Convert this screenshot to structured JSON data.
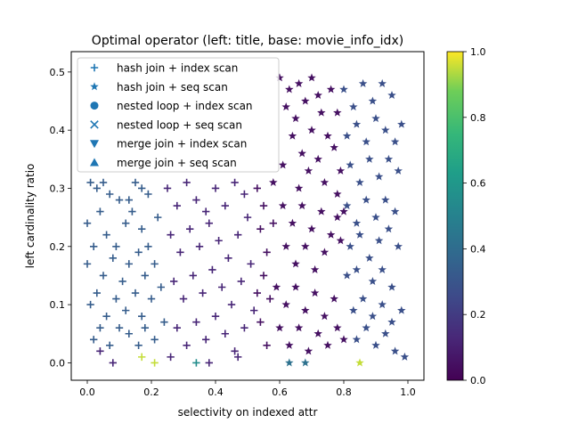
{
  "chart_data": {
    "type": "scatter",
    "title": "Optimal operator (left: title, base: movie_info_idx)",
    "xlabel": "selectivity on indexed attr",
    "ylabel": "left cardinality ratio",
    "xlim": [
      -0.05,
      1.05
    ],
    "ylim": [
      -0.03,
      0.535
    ],
    "xticks": [
      0.0,
      0.2,
      0.4,
      0.6,
      0.8,
      1.0
    ],
    "xtick_labels": [
      "0.0",
      "0.2",
      "0.4",
      "0.6",
      "0.8",
      "1.0"
    ],
    "yticks": [
      0.0,
      0.1,
      0.2,
      0.3,
      0.4,
      0.5
    ],
    "ytick_labels": [
      "0.0",
      "0.1",
      "0.2",
      "0.3",
      "0.4",
      "0.5"
    ],
    "grid": false,
    "legend_position": "upper-left",
    "legend_color": "#1f77b4",
    "colormap": "viridis",
    "colorbar": {
      "range": [
        0.0,
        1.0
      ],
      "ticks": [
        0.0,
        0.2,
        0.4,
        0.6,
        0.8,
        1.0
      ],
      "tick_labels": [
        "0.0",
        "0.2",
        "0.4",
        "0.6",
        "0.8",
        "1.0"
      ]
    },
    "series": [
      {
        "name": "hash join + index scan",
        "marker": "plus",
        "points": [
          [
            0.01,
            0.31,
            0.33
          ],
          [
            0.03,
            0.3,
            0.33
          ],
          [
            0.05,
            0.31,
            0.33
          ],
          [
            0.07,
            0.29,
            0.33
          ],
          [
            0.1,
            0.28,
            0.33
          ],
          [
            0.13,
            0.28,
            0.33
          ],
          [
            0.15,
            0.31,
            0.33
          ],
          [
            0.17,
            0.3,
            0.33
          ],
          [
            0.19,
            0.29,
            0.33
          ],
          [
            0.0,
            0.24,
            0.33
          ],
          [
            0.04,
            0.26,
            0.33
          ],
          [
            0.06,
            0.22,
            0.33
          ],
          [
            0.09,
            0.2,
            0.33
          ],
          [
            0.12,
            0.24,
            0.33
          ],
          [
            0.14,
            0.26,
            0.33
          ],
          [
            0.17,
            0.23,
            0.33
          ],
          [
            0.19,
            0.2,
            0.33
          ],
          [
            0.22,
            0.25,
            0.33
          ],
          [
            0.0,
            0.17,
            0.33
          ],
          [
            0.02,
            0.2,
            0.33
          ],
          [
            0.05,
            0.15,
            0.33
          ],
          [
            0.08,
            0.18,
            0.33
          ],
          [
            0.11,
            0.14,
            0.33
          ],
          [
            0.13,
            0.17,
            0.33
          ],
          [
            0.16,
            0.19,
            0.33
          ],
          [
            0.18,
            0.15,
            0.33
          ],
          [
            0.21,
            0.17,
            0.33
          ],
          [
            0.01,
            0.1,
            0.33
          ],
          [
            0.03,
            0.12,
            0.33
          ],
          [
            0.06,
            0.08,
            0.33
          ],
          [
            0.09,
            0.11,
            0.33
          ],
          [
            0.12,
            0.09,
            0.33
          ],
          [
            0.15,
            0.12,
            0.33
          ],
          [
            0.17,
            0.08,
            0.33
          ],
          [
            0.2,
            0.11,
            0.33
          ],
          [
            0.23,
            0.13,
            0.33
          ],
          [
            0.02,
            0.04,
            0.33
          ],
          [
            0.04,
            0.06,
            0.33
          ],
          [
            0.07,
            0.03,
            0.33
          ],
          [
            0.1,
            0.06,
            0.33
          ],
          [
            0.13,
            0.05,
            0.33
          ],
          [
            0.16,
            0.03,
            0.33
          ],
          [
            0.18,
            0.06,
            0.33
          ],
          [
            0.21,
            0.04,
            0.33
          ],
          [
            0.24,
            0.07,
            0.33
          ],
          [
            0.25,
            0.3,
            0.12
          ],
          [
            0.28,
            0.27,
            0.12
          ],
          [
            0.31,
            0.31,
            0.12
          ],
          [
            0.34,
            0.28,
            0.12
          ],
          [
            0.37,
            0.26,
            0.12
          ],
          [
            0.4,
            0.3,
            0.12
          ],
          [
            0.43,
            0.27,
            0.12
          ],
          [
            0.46,
            0.31,
            0.12
          ],
          [
            0.49,
            0.29,
            0.12
          ],
          [
            0.26,
            0.22,
            0.12
          ],
          [
            0.29,
            0.19,
            0.12
          ],
          [
            0.32,
            0.23,
            0.12
          ],
          [
            0.35,
            0.2,
            0.12
          ],
          [
            0.38,
            0.24,
            0.12
          ],
          [
            0.41,
            0.21,
            0.12
          ],
          [
            0.44,
            0.18,
            0.12
          ],
          [
            0.47,
            0.22,
            0.12
          ],
          [
            0.5,
            0.25,
            0.12
          ],
          [
            0.27,
            0.14,
            0.12
          ],
          [
            0.3,
            0.11,
            0.12
          ],
          [
            0.33,
            0.15,
            0.12
          ],
          [
            0.36,
            0.12,
            0.12
          ],
          [
            0.39,
            0.16,
            0.12
          ],
          [
            0.42,
            0.13,
            0.12
          ],
          [
            0.45,
            0.1,
            0.12
          ],
          [
            0.48,
            0.14,
            0.12
          ],
          [
            0.51,
            0.17,
            0.12
          ],
          [
            0.28,
            0.06,
            0.12
          ],
          [
            0.31,
            0.03,
            0.12
          ],
          [
            0.34,
            0.07,
            0.12
          ],
          [
            0.37,
            0.04,
            0.12
          ],
          [
            0.4,
            0.08,
            0.12
          ],
          [
            0.43,
            0.05,
            0.12
          ],
          [
            0.46,
            0.02,
            0.12
          ],
          [
            0.49,
            0.06,
            0.12
          ],
          [
            0.52,
            0.09,
            0.12
          ],
          [
            0.04,
            0.02,
            0.12
          ],
          [
            0.08,
            0.0,
            0.12
          ],
          [
            0.26,
            0.01,
            0.12
          ],
          [
            0.38,
            0.0,
            0.12
          ],
          [
            0.47,
            0.01,
            0.12
          ],
          [
            0.17,
            0.01,
            0.95
          ],
          [
            0.21,
            0.0,
            0.95
          ],
          [
            0.34,
            0.0,
            0.55
          ],
          [
            0.53,
            0.3,
            0.05
          ],
          [
            0.55,
            0.27,
            0.05
          ],
          [
            0.54,
            0.23,
            0.05
          ],
          [
            0.56,
            0.19,
            0.05
          ],
          [
            0.55,
            0.15,
            0.05
          ],
          [
            0.57,
            0.11,
            0.05
          ],
          [
            0.54,
            0.07,
            0.05
          ],
          [
            0.56,
            0.03,
            0.05
          ],
          [
            0.58,
            0.24,
            0.05
          ],
          [
            0.53,
            0.12,
            0.05
          ]
        ]
      },
      {
        "name": "hash join + seq scan",
        "marker": "star",
        "points": [
          [
            0.6,
            0.49,
            0.05
          ],
          [
            0.63,
            0.47,
            0.05
          ],
          [
            0.66,
            0.48,
            0.05
          ],
          [
            0.62,
            0.44,
            0.05
          ],
          [
            0.65,
            0.42,
            0.05
          ],
          [
            0.68,
            0.45,
            0.05
          ],
          [
            0.7,
            0.49,
            0.05
          ],
          [
            0.72,
            0.46,
            0.05
          ],
          [
            0.64,
            0.39,
            0.05
          ],
          [
            0.67,
            0.36,
            0.05
          ],
          [
            0.7,
            0.4,
            0.05
          ],
          [
            0.73,
            0.43,
            0.05
          ],
          [
            0.75,
            0.39,
            0.05
          ],
          [
            0.69,
            0.33,
            0.05
          ],
          [
            0.72,
            0.35,
            0.05
          ],
          [
            0.74,
            0.31,
            0.05
          ],
          [
            0.61,
            0.34,
            0.05
          ],
          [
            0.66,
            0.3,
            0.05
          ],
          [
            0.58,
            0.31,
            0.05
          ],
          [
            0.61,
            0.27,
            0.05
          ],
          [
            0.64,
            0.24,
            0.05
          ],
          [
            0.67,
            0.27,
            0.05
          ],
          [
            0.7,
            0.23,
            0.05
          ],
          [
            0.73,
            0.26,
            0.05
          ],
          [
            0.76,
            0.22,
            0.05
          ],
          [
            0.78,
            0.25,
            0.05
          ],
          [
            0.62,
            0.2,
            0.05
          ],
          [
            0.65,
            0.17,
            0.05
          ],
          [
            0.68,
            0.2,
            0.05
          ],
          [
            0.71,
            0.16,
            0.05
          ],
          [
            0.74,
            0.19,
            0.05
          ],
          [
            0.59,
            0.13,
            0.05
          ],
          [
            0.62,
            0.1,
            0.05
          ],
          [
            0.65,
            0.13,
            0.05
          ],
          [
            0.68,
            0.09,
            0.05
          ],
          [
            0.71,
            0.12,
            0.05
          ],
          [
            0.74,
            0.08,
            0.05
          ],
          [
            0.77,
            0.11,
            0.05
          ],
          [
            0.6,
            0.06,
            0.05
          ],
          [
            0.63,
            0.03,
            0.05
          ],
          [
            0.66,
            0.06,
            0.05
          ],
          [
            0.69,
            0.02,
            0.05
          ],
          [
            0.72,
            0.05,
            0.05
          ],
          [
            0.75,
            0.03,
            0.05
          ],
          [
            0.78,
            0.06,
            0.05
          ],
          [
            0.8,
            0.04,
            0.05
          ],
          [
            0.76,
            0.47,
            0.05
          ],
          [
            0.78,
            0.43,
            0.05
          ],
          [
            0.77,
            0.37,
            0.05
          ],
          [
            0.79,
            0.33,
            0.05
          ],
          [
            0.78,
            0.29,
            0.05
          ],
          [
            0.8,
            0.26,
            0.05
          ],
          [
            0.79,
            0.21,
            0.05
          ],
          [
            0.8,
            0.47,
            0.28
          ],
          [
            0.83,
            0.44,
            0.28
          ],
          [
            0.86,
            0.48,
            0.28
          ],
          [
            0.89,
            0.45,
            0.28
          ],
          [
            0.92,
            0.48,
            0.28
          ],
          [
            0.95,
            0.46,
            0.28
          ],
          [
            0.81,
            0.39,
            0.28
          ],
          [
            0.84,
            0.41,
            0.28
          ],
          [
            0.87,
            0.38,
            0.28
          ],
          [
            0.9,
            0.42,
            0.28
          ],
          [
            0.93,
            0.4,
            0.28
          ],
          [
            0.96,
            0.38,
            0.28
          ],
          [
            0.98,
            0.41,
            0.28
          ],
          [
            0.82,
            0.34,
            0.28
          ],
          [
            0.85,
            0.31,
            0.28
          ],
          [
            0.88,
            0.35,
            0.28
          ],
          [
            0.91,
            0.32,
            0.28
          ],
          [
            0.94,
            0.35,
            0.28
          ],
          [
            0.97,
            0.33,
            0.28
          ],
          [
            0.81,
            0.27,
            0.28
          ],
          [
            0.84,
            0.24,
            0.28
          ],
          [
            0.87,
            0.28,
            0.28
          ],
          [
            0.9,
            0.25,
            0.28
          ],
          [
            0.93,
            0.28,
            0.28
          ],
          [
            0.96,
            0.26,
            0.28
          ],
          [
            0.82,
            0.2,
            0.28
          ],
          [
            0.85,
            0.22,
            0.28
          ],
          [
            0.88,
            0.18,
            0.28
          ],
          [
            0.91,
            0.21,
            0.28
          ],
          [
            0.94,
            0.23,
            0.28
          ],
          [
            0.97,
            0.2,
            0.28
          ],
          [
            0.81,
            0.15,
            0.28
          ],
          [
            0.84,
            0.16,
            0.28
          ],
          [
            0.89,
            0.14,
            0.28
          ],
          [
            0.92,
            0.16,
            0.28
          ],
          [
            0.95,
            0.13,
            0.28
          ],
          [
            0.83,
            0.09,
            0.28
          ],
          [
            0.86,
            0.11,
            0.28
          ],
          [
            0.89,
            0.08,
            0.28
          ],
          [
            0.92,
            0.1,
            0.28
          ],
          [
            0.95,
            0.07,
            0.28
          ],
          [
            0.98,
            0.09,
            0.28
          ],
          [
            0.84,
            0.04,
            0.28
          ],
          [
            0.87,
            0.06,
            0.28
          ],
          [
            0.9,
            0.03,
            0.28
          ],
          [
            0.93,
            0.05,
            0.28
          ],
          [
            0.96,
            0.02,
            0.28
          ],
          [
            0.99,
            0.01,
            0.28
          ],
          [
            0.63,
            0.0,
            0.42
          ],
          [
            0.68,
            0.0,
            0.42
          ],
          [
            0.85,
            0.0,
            0.95
          ]
        ]
      },
      {
        "name": "nested loop + index scan",
        "marker": "circle",
        "points": []
      },
      {
        "name": "nested loop + seq scan",
        "marker": "x",
        "points": []
      },
      {
        "name": "merge join + index scan",
        "marker": "triangle-down",
        "points": []
      },
      {
        "name": "merge join + seq scan",
        "marker": "triangle-up",
        "points": []
      }
    ]
  }
}
